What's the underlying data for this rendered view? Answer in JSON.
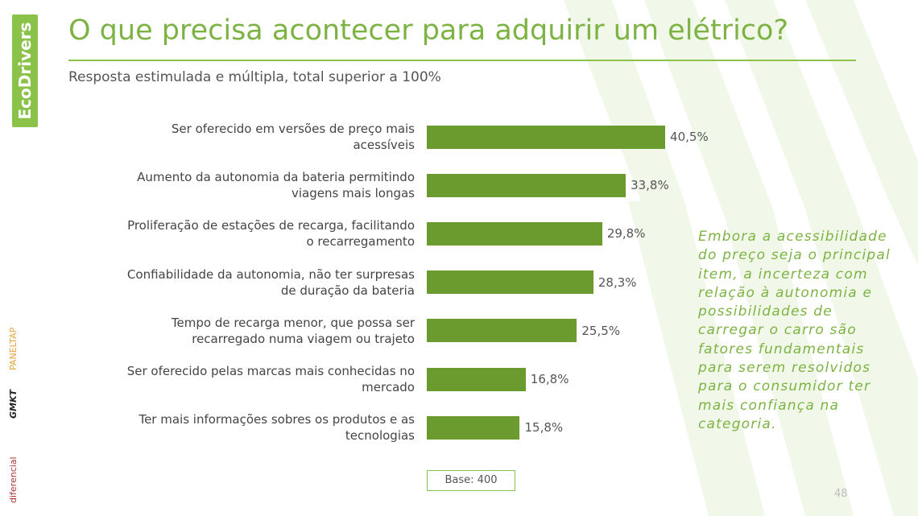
{
  "header": {
    "title": "O que precisa acontecer para adquirir um elétrico?",
    "subtitle": "Resposta estimulada e múltipla, total superior a 100%"
  },
  "chart_data": {
    "type": "bar",
    "orientation": "horizontal",
    "categories": [
      "Ser oferecido em versões de preço mais acessíveis",
      "Aumento da autonomia da bateria permitindo viagens mais longas",
      "Proliferação de estações de recarga, facilitando o recarregamento",
      "Confiabilidade da autonomia, não ter surpresas de duração da bateria",
      "Tempo de recarga menor, que possa ser recarregado numa viagem ou trajeto",
      "Ser oferecido pelas marcas mais conhecidas no mercado",
      "Ter mais informações sobres os produtos e as tecnologias"
    ],
    "values": [
      40.5,
      33.8,
      29.8,
      28.3,
      25.5,
      16.8,
      15.8
    ],
    "value_labels": [
      "40,5%",
      "33,8%",
      "29,8%",
      "28,3%",
      "25,5%",
      "16,8%",
      "15,8%"
    ],
    "color": "#6b9a2e",
    "base_note": "Base: 400"
  },
  "annotation": "Embora a acessibilidade do preço seja o principal item, a incerteza com relação à autonomia e possibilidades de carregar o carro são fatores fundamentais para serem resolvidos para o consumidor ter mais confiança na categoria.",
  "page_number": "48",
  "logos": [
    "EcoDrivers",
    "PANELTAP",
    "GMKT",
    "diferencial"
  ]
}
